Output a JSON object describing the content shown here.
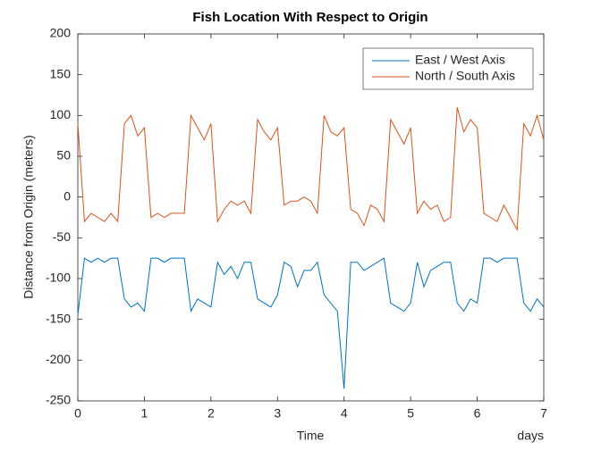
{
  "chart_data": {
    "type": "line",
    "title": "Fish Location With Respect to Origin",
    "xlabel": "Time",
    "ylabel": "Distance from Origin (meters)",
    "x_unit_label": "days",
    "x": [
      0,
      0.1,
      0.2,
      0.3,
      0.4,
      0.5,
      0.6,
      0.7,
      0.8,
      0.9,
      1,
      1.1,
      1.2,
      1.3,
      1.4,
      1.5,
      1.6,
      1.7,
      1.8,
      1.9,
      2,
      2.1,
      2.2,
      2.3,
      2.4,
      2.5,
      2.6,
      2.7,
      2.8,
      2.9,
      3,
      3.1,
      3.2,
      3.3,
      3.4,
      3.5,
      3.6,
      3.7,
      3.8,
      3.9,
      4,
      4.1,
      4.2,
      4.3,
      4.4,
      4.5,
      4.6,
      4.7,
      4.8,
      4.9,
      5,
      5.1,
      5.2,
      5.3,
      5.4,
      5.5,
      5.6,
      5.7,
      5.8,
      5.9,
      6,
      6.1,
      6.2,
      6.3,
      6.4,
      6.5,
      6.6,
      6.7,
      6.8,
      6.9,
      7
    ],
    "series": [
      {
        "name": "East / West Axis",
        "color": "#0072BD",
        "values": [
          -145,
          -75,
          -80,
          -75,
          -80,
          -75,
          -75,
          -125,
          -135,
          -130,
          -140,
          -75,
          -75,
          -80,
          -75,
          -75,
          -75,
          -140,
          -125,
          -130,
          -135,
          -80,
          -95,
          -85,
          -100,
          -80,
          -80,
          -125,
          -130,
          -135,
          -120,
          -80,
          -85,
          -110,
          -90,
          -90,
          -80,
          -120,
          -130,
          -140,
          -235,
          -80,
          -80,
          -90,
          -85,
          -80,
          -75,
          -130,
          -135,
          -140,
          -130,
          -80,
          -110,
          -90,
          -85,
          -80,
          -80,
          -130,
          -140,
          -125,
          -130,
          -75,
          -75,
          -80,
          -75,
          -75,
          -75,
          -130,
          -140,
          -125,
          -135
        ]
      },
      {
        "name": "North / South Axis",
        "color": "#D95319",
        "values": [
          90,
          -30,
          -20,
          -25,
          -30,
          -20,
          -30,
          90,
          100,
          75,
          85,
          -25,
          -20,
          -25,
          -20,
          -20,
          -20,
          100,
          85,
          70,
          90,
          -30,
          -15,
          -5,
          -10,
          -5,
          -20,
          95,
          80,
          70,
          85,
          -10,
          -5,
          -5,
          0,
          -5,
          -20,
          100,
          80,
          75,
          85,
          -15,
          -20,
          -35,
          -10,
          -15,
          -30,
          95,
          80,
          65,
          85,
          -20,
          -5,
          -15,
          -10,
          -30,
          -25,
          110,
          80,
          95,
          85,
          -20,
          -25,
          -30,
          -10,
          -25,
          -40,
          90,
          75,
          100,
          70
        ]
      }
    ],
    "xlim": [
      0,
      7
    ],
    "xticks": [
      0,
      1,
      2,
      3,
      4,
      5,
      6,
      7
    ],
    "ylim": [
      -250,
      200
    ],
    "yticks": [
      -250,
      -200,
      -150,
      -100,
      -50,
      0,
      50,
      100,
      150,
      200
    ],
    "grid": false,
    "legend": "northeast"
  }
}
